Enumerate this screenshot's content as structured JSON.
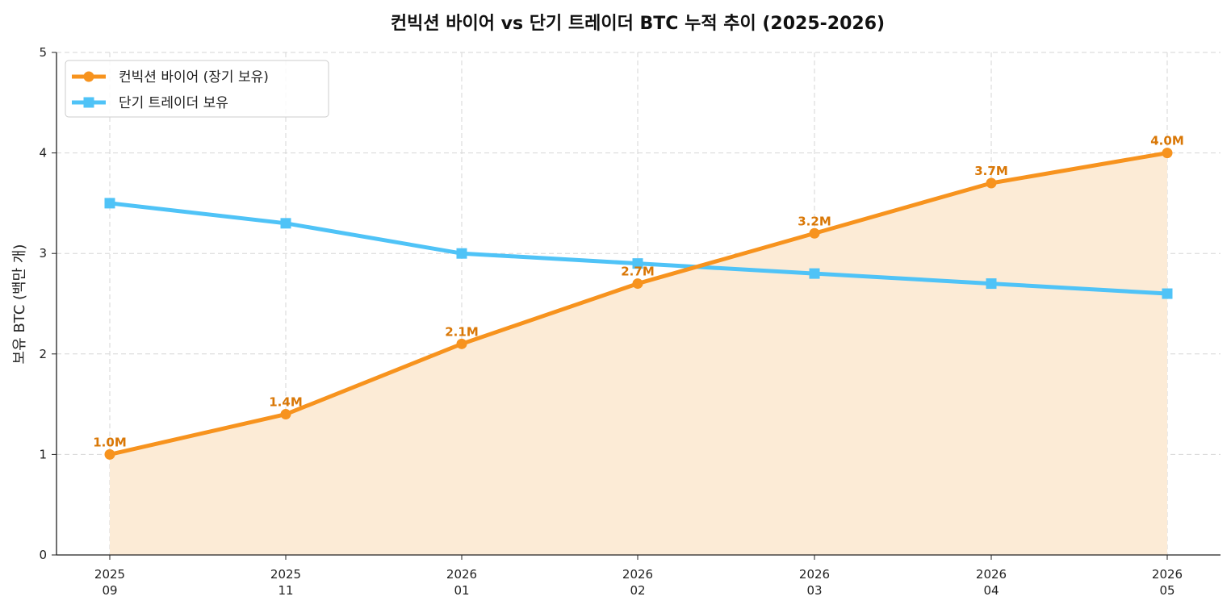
{
  "chart_data": {
    "type": "line",
    "title": "컨빅션 바이어 vs 단기 트레이더 BTC 누적 추이 (2025-2026)",
    "xlabel": "",
    "ylabel": "보유 BTC (백만 개)",
    "ylim": [
      0,
      5
    ],
    "yticks": [
      "0",
      "1",
      "2",
      "3",
      "4",
      "5"
    ],
    "categories": [
      {
        "year": "2025",
        "month": "09"
      },
      {
        "year": "2025",
        "month": "11"
      },
      {
        "year": "2026",
        "month": "01"
      },
      {
        "year": "2026",
        "month": "02"
      },
      {
        "year": "2026",
        "month": "03"
      },
      {
        "year": "2026",
        "month": "04"
      },
      {
        "year": "2026",
        "month": "05"
      }
    ],
    "grid": true,
    "legend": "top-left",
    "series": [
      {
        "name": "컨빅션 바이어 (장기 보유)",
        "color": "#F7931E",
        "label_color": "#D97706",
        "marker": "circle",
        "area_fill": "#FCEBD6",
        "values": [
          1.0,
          1.4,
          2.1,
          2.7,
          3.2,
          3.7,
          4.0
        ],
        "data_labels": [
          "1.0M",
          "1.4M",
          "2.1M",
          "2.7M",
          "3.2M",
          "3.7M",
          "4.0M"
        ]
      },
      {
        "name": "단기 트레이더 보유",
        "color": "#4FC3F7",
        "marker": "square",
        "values": [
          3.5,
          3.3,
          3.0,
          2.9,
          2.8,
          2.7,
          2.6
        ]
      }
    ]
  }
}
